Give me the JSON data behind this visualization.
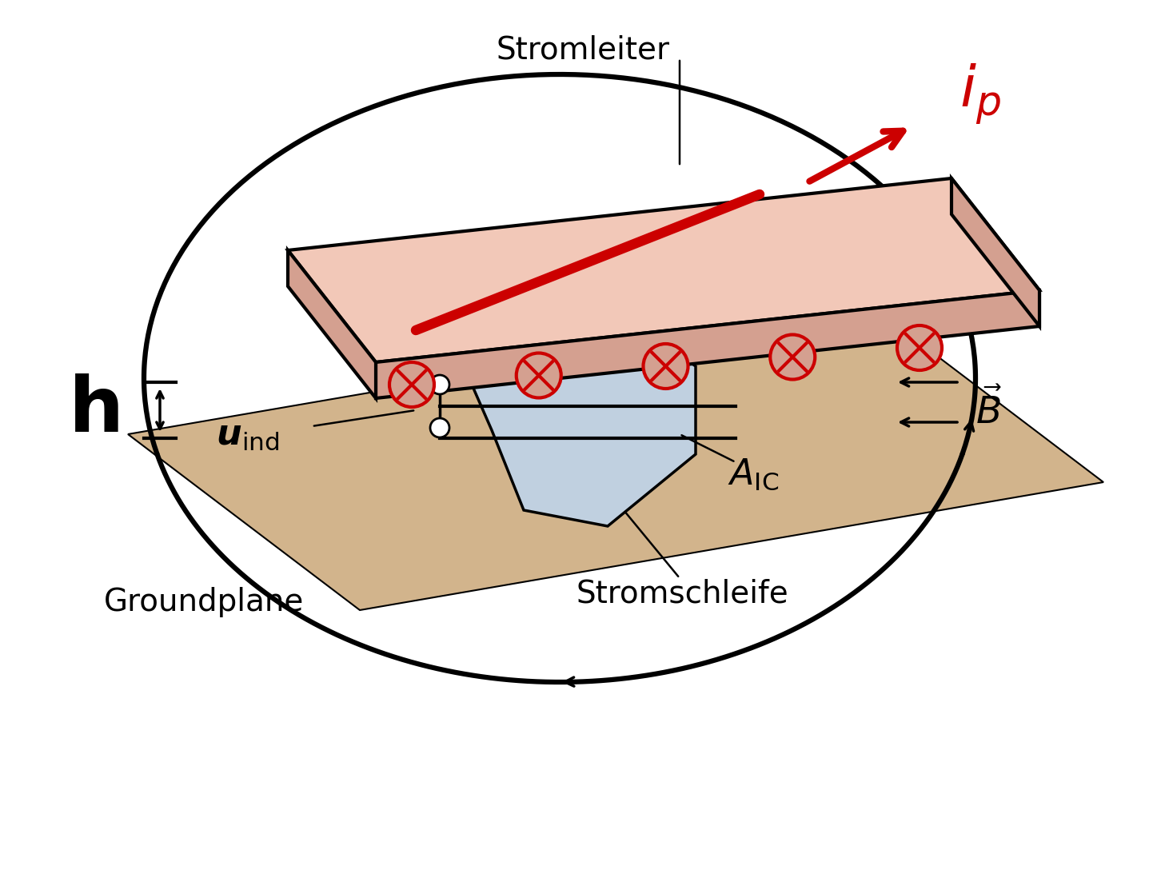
{
  "bg_color": "#ffffff",
  "groundplane_color": "#d2b48c",
  "conductor_top_color": "#f2c8b8",
  "conductor_side_color": "#d4a090",
  "red_color": "#cc0000",
  "ic_fill_color": "#c0d0e0",
  "loop_lw": 4.5,
  "text_stromleiter": "Stromleiter",
  "text_groundplane": "Groundplane",
  "text_stromschleife": "Stromschleife"
}
